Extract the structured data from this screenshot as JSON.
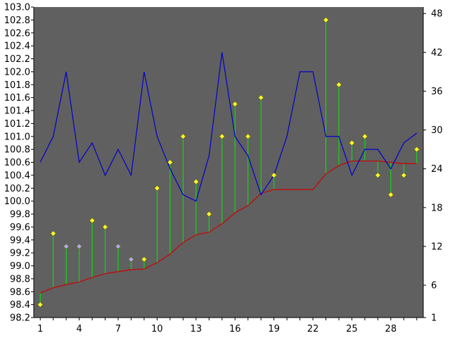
{
  "chart_data": {
    "type": "line",
    "title": "",
    "xlabel": "",
    "ylabel": "",
    "x": [
      1,
      2,
      3,
      4,
      5,
      6,
      7,
      8,
      9,
      10,
      11,
      12,
      13,
      14,
      15,
      16,
      17,
      18,
      19,
      20,
      21,
      22,
      23,
      24,
      25,
      26,
      27,
      28,
      29,
      30
    ],
    "x_ticks": [
      1,
      4,
      7,
      10,
      13,
      16,
      19,
      22,
      25,
      28
    ],
    "x_range": [
      0.5,
      30.5
    ],
    "left_axis": {
      "range": [
        98.2,
        103.0
      ],
      "ticks": [
        "98.2",
        "98.4",
        "98.6",
        "98.8",
        "99.0",
        "99.2",
        "99.4",
        "99.6",
        "99.8",
        "100.0",
        "100.2",
        "100.4",
        "100.6",
        "100.8",
        "101.0",
        "101.2",
        "101.4",
        "101.6",
        "101.8",
        "102.0",
        "102.2",
        "102.4",
        "102.6",
        "102.8",
        "103.0"
      ]
    },
    "right_axis": {
      "range": [
        1,
        49
      ],
      "ticks": [
        "1",
        "6",
        "12",
        "18",
        "24",
        "30",
        "36",
        "42",
        "48"
      ]
    },
    "grid": false,
    "plot_background": "#606060",
    "series": [
      {
        "axis": "right",
        "color": "#0000cc",
        "values": [
          25.0,
          29.0,
          39.0,
          25.0,
          28.0,
          23.0,
          27.0,
          23.0,
          39.0,
          29.0,
          24.0,
          20.0,
          19.0,
          26.0,
          42.0,
          29.0,
          26.0,
          20.0,
          23.0,
          29.0,
          39.0,
          39.0,
          29.0,
          29.0,
          23.0,
          27.0,
          27.0,
          24.0,
          28.0,
          29.5
        ]
      },
      {
        "axis": "left",
        "color": "#cc0000",
        "values": [
          98.58,
          98.66,
          98.71,
          98.75,
          98.82,
          98.88,
          98.91,
          98.94,
          98.95,
          99.05,
          99.18,
          99.36,
          99.48,
          99.52,
          99.65,
          99.82,
          99.93,
          100.12,
          100.18,
          100.18,
          100.18,
          100.18,
          100.42,
          100.55,
          100.62,
          100.62,
          100.62,
          100.6,
          100.58,
          100.58
        ]
      },
      {
        "axis": "left",
        "type": "scatter",
        "color_default": "#ffff33",
        "color_alt": "#aaaaff",
        "values": [
          98.4,
          99.5,
          99.3,
          99.3,
          99.7,
          99.6,
          99.3,
          99.1,
          99.1,
          100.2,
          100.6,
          101.0,
          100.3,
          99.8,
          101.0,
          101.5,
          101.0,
          101.6,
          100.4,
          null,
          null,
          null,
          102.8,
          101.8,
          100.9,
          101.0,
          100.4,
          100.1,
          100.4,
          100.8
        ],
        "alt_points": [
          3,
          4,
          7,
          8
        ],
        "stems_to_series": 1
      }
    ]
  }
}
